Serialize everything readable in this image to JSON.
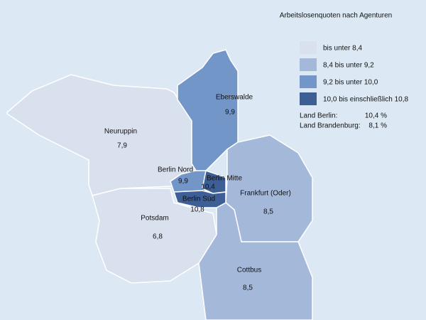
{
  "legend": {
    "title": "Arbeitslosenquoten nach Agenturen",
    "items": [
      {
        "label": "bis unter 8,4",
        "color": "#d9e1ee"
      },
      {
        "label": "8,4 bis unter 9,2",
        "color": "#a4b9da"
      },
      {
        "label": "9,2 bis unter 10,0",
        "color": "#7396c9"
      },
      {
        "label": "10,0 bis einschließlich 10,8",
        "color": "#3d5f96"
      }
    ]
  },
  "summary": [
    {
      "label": "Land Berlin:",
      "value": "10,4 %"
    },
    {
      "label": "Land Brandenburg:",
      "value": "8,1 %"
    }
  ],
  "regions": [
    {
      "name": "Neuruppin",
      "value": "7,9",
      "color": "#d9e1ee"
    },
    {
      "name": "Eberswalde",
      "value": "9,9",
      "color": "#7396c9"
    },
    {
      "name": "Frankfurt (Oder)",
      "value": "8,5",
      "color": "#a4b9da"
    },
    {
      "name": "Potsdam",
      "value": "6,8",
      "color": "#d9e1ee"
    },
    {
      "name": "Cottbus",
      "value": "8,5",
      "color": "#a4b9da"
    },
    {
      "name": "Berlin Nord",
      "value": "9,9",
      "color": "#7396c9"
    },
    {
      "name": "Berlin Mitte",
      "value": "10,4",
      "color": "#3d5f96"
    },
    {
      "name": "Berlin Süd",
      "value": "10,8",
      "color": "#3d5f96"
    }
  ]
}
